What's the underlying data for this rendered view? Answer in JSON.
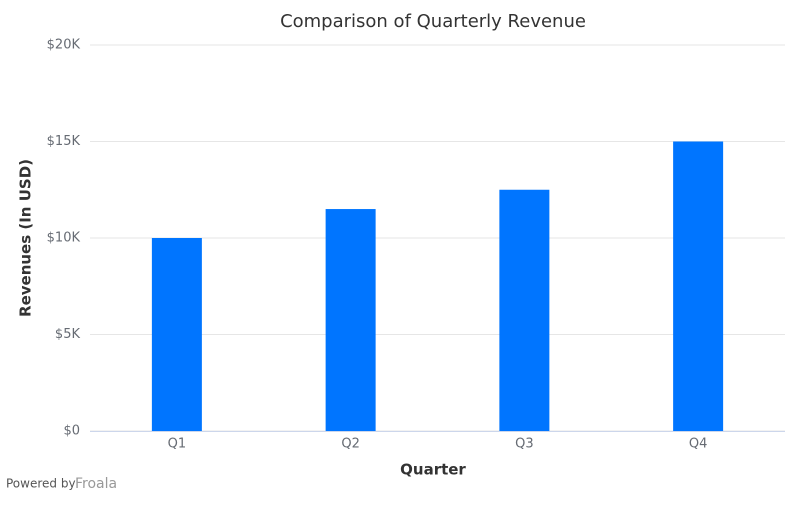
{
  "chart_data": {
    "type": "bar",
    "title": "Comparison of Quarterly Revenue",
    "x_label": "Quarter",
    "y_label": "Revenues (In USD)",
    "categories": [
      "Q1",
      "Q2",
      "Q3",
      "Q4"
    ],
    "values": [
      10000,
      11500,
      12500,
      15000
    ],
    "color": "#0075ff",
    "ylim": [
      0,
      20000
    ],
    "yticks": [
      {
        "value": 0,
        "label": "$0"
      },
      {
        "value": 5000,
        "label": "$5K"
      },
      {
        "value": 10000,
        "label": "$10K"
      },
      {
        "value": 15000,
        "label": "$15K"
      },
      {
        "value": 20000,
        "label": "$20K"
      }
    ],
    "grid": true,
    "credit_prefix": "Powered by",
    "credit_brand": "Froala"
  }
}
